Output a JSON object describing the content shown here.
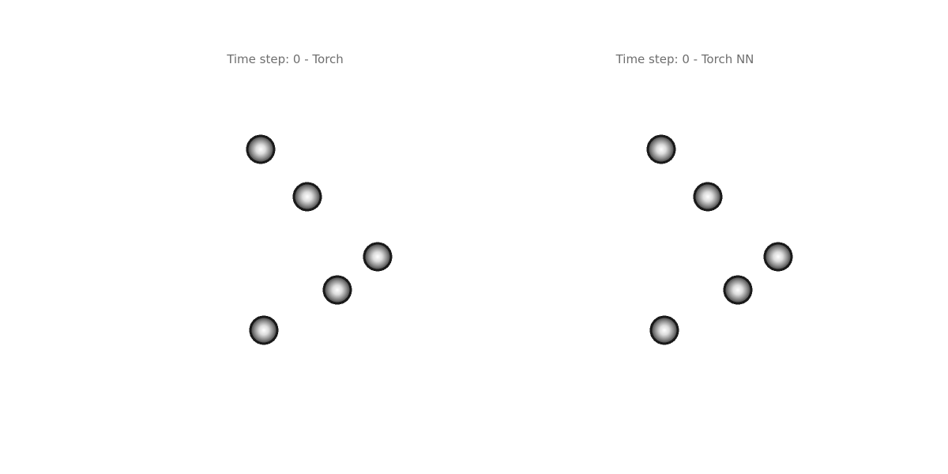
{
  "panels": [
    {
      "title": "Time step: 0 - Torch",
      "ball_fill": "#ffffff",
      "ball_rim": "#1a1a1a"
    },
    {
      "title": "Time step: 0 - Torch NN",
      "ball_fill": "#ffffff",
      "ball_rim": "#1a1a1a"
    }
  ]
}
